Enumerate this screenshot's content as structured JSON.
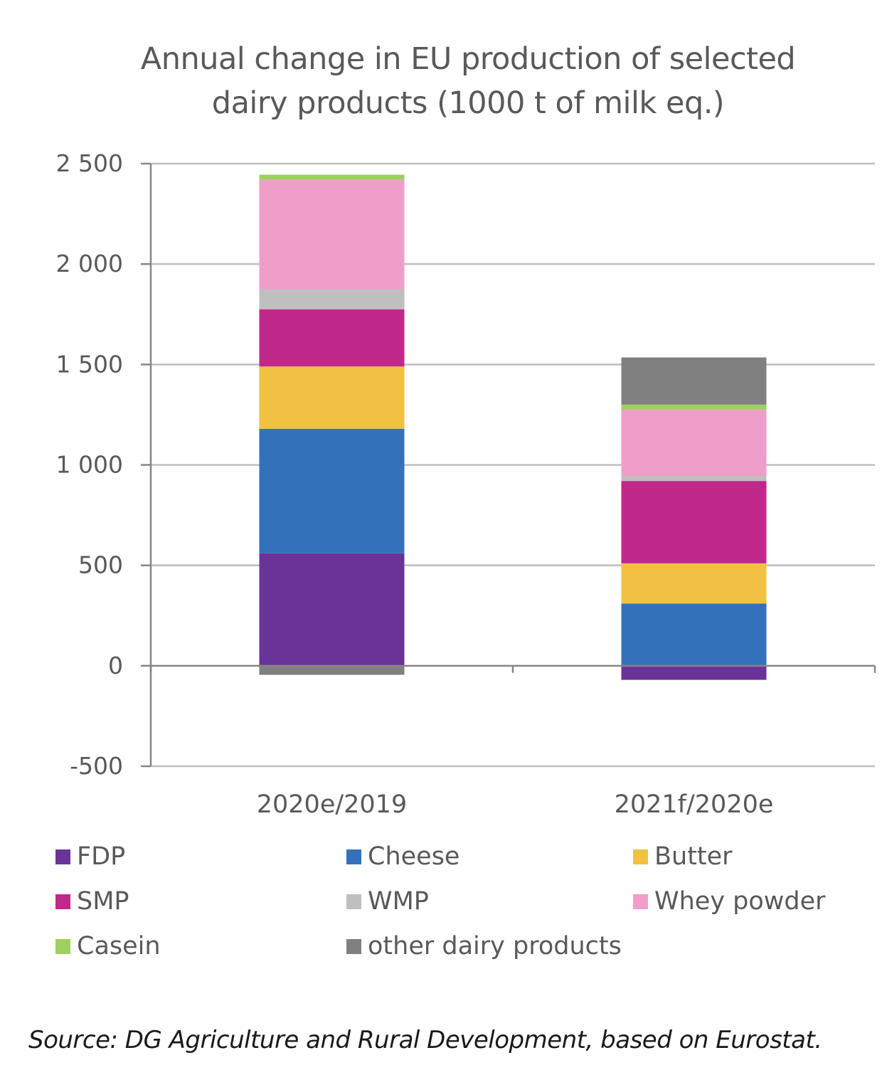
{
  "title_line1": "Annual change in EU production of selected",
  "title_line2": "dairy products (1000 t of milk eq.)",
  "source": "Source: DG Agriculture and Rural Development, based on Eurostat.",
  "chart_data": {
    "type": "bar",
    "stacked": true,
    "title": "Annual change in EU production of selected dairy products (1000 t of milk eq.)",
    "categories": [
      "2020e/2019",
      "2021f/2020e"
    ],
    "ylim": [
      -500,
      2500
    ],
    "yticks": [
      -500,
      0,
      500,
      1000,
      1500,
      2000,
      2500
    ],
    "ytick_labels": [
      "-500",
      "0",
      "500",
      "1 000",
      "1 500",
      "2 000",
      "2 500"
    ],
    "grid": true,
    "legend_position": "bottom",
    "series": [
      {
        "name": "FDP",
        "color": "#6a3397",
        "values": [
          560,
          -70
        ]
      },
      {
        "name": "Cheese",
        "color": "#3471bb",
        "values": [
          620,
          310
        ]
      },
      {
        "name": "Butter",
        "color": "#f2c144",
        "values": [
          310,
          200
        ]
      },
      {
        "name": "SMP",
        "color": "#c1288b",
        "values": [
          285,
          410
        ]
      },
      {
        "name": "WMP",
        "color": "#bfbfbf",
        "values": [
          100,
          25
        ]
      },
      {
        "name": "Whey powder",
        "color": "#ef9ec9",
        "values": [
          545,
          330
        ]
      },
      {
        "name": "Casein",
        "color": "#9fcf5f",
        "values": [
          25,
          25
        ]
      },
      {
        "name": "other dairy products",
        "color": "#808080",
        "values": [
          -45,
          235
        ]
      }
    ]
  }
}
